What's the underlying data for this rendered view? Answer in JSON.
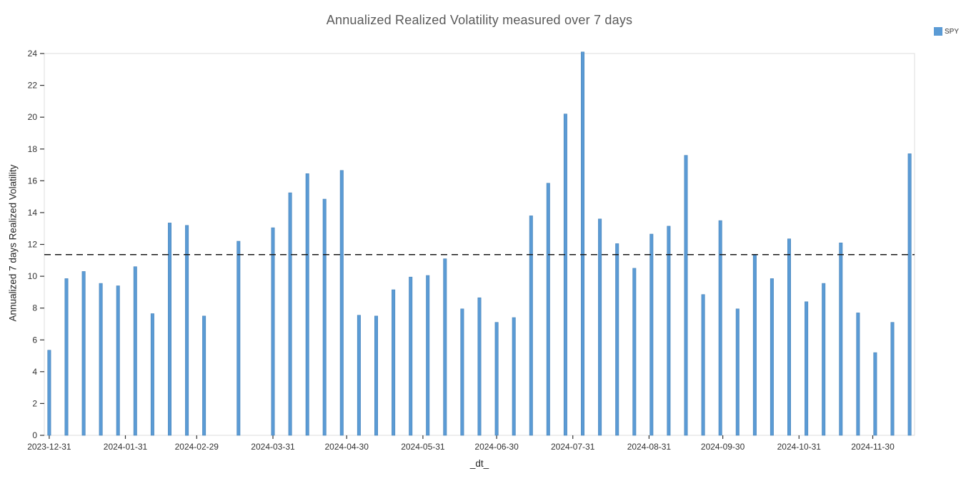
{
  "legend": {
    "position": "top-right",
    "items": [
      {
        "label": "SPY",
        "color": "#5b9bd5"
      }
    ]
  },
  "chart_data": {
    "type": "bar",
    "title": "Annualized Realized Volatility measured over 7 days",
    "xlabel": "_dt_",
    "ylabel": "Annualized 7 days Realized Volatility",
    "ylim": [
      0,
      24
    ],
    "y_ticks": [
      0,
      2,
      4,
      6,
      8,
      10,
      12,
      14,
      16,
      18,
      20,
      22,
      24
    ],
    "x_domain": [
      "2023-12-29",
      "2024-12-17"
    ],
    "x_ticks": [
      "2023-12-31",
      "2024-01-31",
      "2024-02-29",
      "2024-03-31",
      "2024-04-30",
      "2024-05-31",
      "2024-06-30",
      "2024-07-31",
      "2024-08-31",
      "2024-09-30",
      "2024-10-31",
      "2024-11-30"
    ],
    "grid": false,
    "legend_position": "top-right",
    "mean_line": 11.36,
    "mean_line_color": "#1a1a1a",
    "frame_color": "#dcdcdc",
    "series": [
      {
        "name": "SPY",
        "color": "#5b9bd5",
        "edge_color": "#4a84b8",
        "x": [
          "2023-12-31",
          "2024-01-07",
          "2024-01-14",
          "2024-01-21",
          "2024-01-28",
          "2024-02-04",
          "2024-02-11",
          "2024-02-18",
          "2024-02-25",
          "2024-03-03",
          "2024-03-17",
          "2024-03-31",
          "2024-04-07",
          "2024-04-14",
          "2024-04-21",
          "2024-04-28",
          "2024-05-05",
          "2024-05-12",
          "2024-05-19",
          "2024-05-26",
          "2024-06-02",
          "2024-06-09",
          "2024-06-16",
          "2024-06-23",
          "2024-06-30",
          "2024-07-07",
          "2024-07-14",
          "2024-07-21",
          "2024-07-28",
          "2024-08-04",
          "2024-08-11",
          "2024-08-18",
          "2024-08-25",
          "2024-09-01",
          "2024-09-08",
          "2024-09-15",
          "2024-09-22",
          "2024-09-29",
          "2024-10-06",
          "2024-10-13",
          "2024-10-20",
          "2024-10-27",
          "2024-11-03",
          "2024-11-10",
          "2024-11-17",
          "2024-11-24",
          "2024-12-01",
          "2024-12-08",
          "2024-12-15"
        ],
        "values": [
          5.35,
          9.85,
          10.3,
          9.55,
          9.4,
          10.6,
          7.65,
          13.35,
          13.2,
          7.5,
          12.2,
          13.05,
          15.25,
          16.45,
          14.85,
          16.65,
          7.55,
          7.5,
          9.15,
          9.95,
          10.05,
          11.1,
          7.95,
          8.65,
          7.1,
          7.4,
          13.8,
          15.85,
          20.2,
          24.1,
          13.6,
          12.05,
          10.5,
          12.65,
          13.15,
          17.6,
          8.85,
          13.5,
          7.95,
          11.35,
          9.85,
          12.35,
          8.4,
          9.55,
          12.1,
          7.7,
          5.2,
          7.1,
          17.7
        ]
      }
    ]
  }
}
